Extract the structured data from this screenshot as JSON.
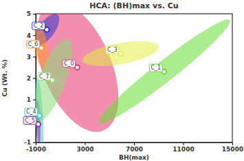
{
  "chart_data": {
    "type": "scatter",
    "title": "HCA: (BH)max vs. Cu",
    "x_label": "BH(max)",
    "y_label": "Cu (Wt. %)",
    "xlim": [
      -1000,
      15000
    ],
    "xticks": [
      -1000,
      3000,
      7000,
      11000,
      15000
    ],
    "ylim": [
      -1,
      5
    ],
    "yticks": [
      -1,
      0,
      1,
      2,
      3,
      4,
      5
    ],
    "grid": false,
    "series": [
      {
        "name": "C_0",
        "color": "#e8336b",
        "x": [
          2370
        ],
        "values": [
          2.5
        ],
        "ellipse_axes": [
          [
            2135,
            -2.95
          ],
          [
            2584,
            0.61
          ]
        ]
      },
      {
        "name": "C_1",
        "color": "#66dd33",
        "x": [
          9450
        ],
        "values": [
          2.3
        ],
        "ellipse_axes": [
          [
            5337,
            2.4
          ],
          [
            506,
            -0.38
          ]
        ]
      },
      {
        "name": "C_2",
        "color": "#3333cc",
        "x": [
          -100
        ],
        "values": [
          4.26
        ],
        "ellipse_axes": [
          [
            843,
            0.71
          ],
          [
            562,
            -0.19
          ]
        ]
      },
      {
        "name": "C_3",
        "color": "#e0ee44",
        "x": [
          5900
        ],
        "values": [
          3.14
        ],
        "ellipse_axes": [
          [
            3090,
            0.32
          ],
          [
            169,
            -0.48
          ]
        ]
      },
      {
        "name": "C_4",
        "color": "#44cccc",
        "x": [
          -700
        ],
        "values": [
          0.25
        ],
        "ellipse_axes": [
          [
            169,
            -1.76
          ],
          [
            281,
            0
          ]
        ]
      },
      {
        "name": "C_5",
        "color": "#8833aa",
        "x": [
          -800
        ],
        "values": [
          -0.15
        ],
        "ellipse_axes": [
          [
            56,
            -1.12
          ],
          [
            169,
            0
          ]
        ]
      },
      {
        "name": "C_6",
        "color": "#ff9933",
        "x": [
          -550
        ],
        "values": [
          3.4
        ],
        "ellipse_axes": [
          [
            225,
            -0.96
          ],
          [
            562,
            0
          ]
        ]
      },
      {
        "name": "C_7",
        "color": "#88dd77",
        "x": [
          350
        ],
        "values": [
          1.9
        ],
        "ellipse_axes": [
          [
            1236,
            1.92
          ],
          [
            1011,
            -0.19
          ]
        ]
      }
    ]
  }
}
